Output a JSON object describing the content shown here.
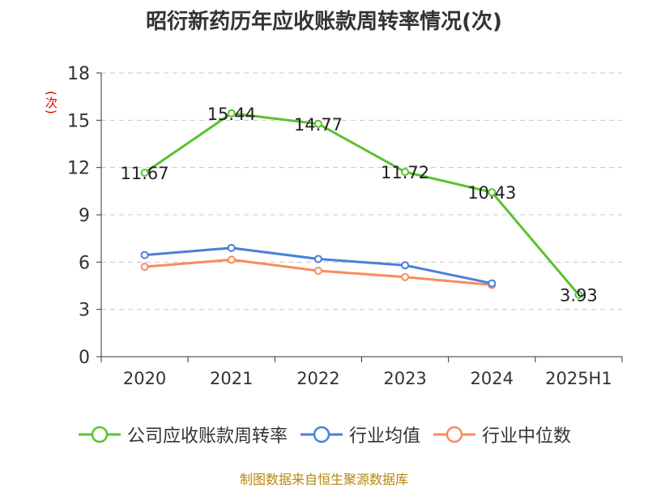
{
  "title": "昭衍新药历年应收账款周转率情况(次)",
  "unit_label": "(次)",
  "source": "制图数据来自恒生聚源数据库",
  "chart_data": {
    "type": "line",
    "title": "昭衍新药历年应收账款周转率情况(次)",
    "ylabel": "(次)",
    "xlabel": "",
    "categories": [
      "2020",
      "2021",
      "2022",
      "2023",
      "2024",
      "2025H1"
    ],
    "ylim": [
      0,
      18
    ],
    "yticks": [
      0,
      3,
      6,
      9,
      12,
      15,
      18
    ],
    "grid": true,
    "legend_position": "bottom",
    "series": [
      {
        "name": "公司应收账款周转率",
        "color": "#5ac22e",
        "values": [
          11.67,
          15.44,
          14.77,
          11.72,
          10.43,
          3.93
        ],
        "labels": [
          "11.67",
          "15.44",
          "14.77",
          "11.72",
          "10.43",
          "3.93"
        ]
      },
      {
        "name": "行业均值",
        "color": "#4a7fd9",
        "values": [
          6.45,
          6.9,
          6.2,
          5.8,
          4.65,
          null
        ]
      },
      {
        "name": "行业中位数",
        "color": "#f78c5c",
        "values": [
          5.7,
          6.15,
          5.45,
          5.05,
          4.55,
          null
        ]
      }
    ]
  }
}
